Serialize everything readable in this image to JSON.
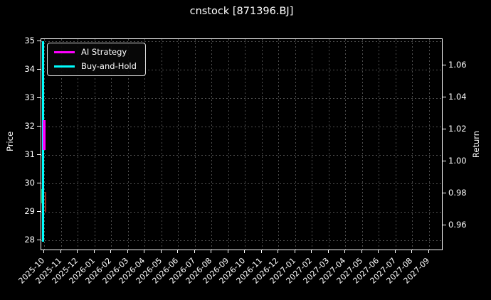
{
  "chart_data": {
    "type": "line",
    "title": "cnstock [871396.BJ]",
    "x_ticks": [
      "2025-10",
      "2025-11",
      "2025-12",
      "2026-01",
      "2026-02",
      "2026-03",
      "2026-04",
      "2026-05",
      "2026-06",
      "2026-07",
      "2026-08",
      "2026-09",
      "2026-10",
      "2026-11",
      "2026-12",
      "2027-01",
      "2027-02",
      "2027-03",
      "2027-04",
      "2027-05",
      "2027-06",
      "2027-07",
      "2027-08",
      "2027-09"
    ],
    "left_axis": {
      "label": "Price",
      "ticks": [
        28,
        29,
        30,
        31,
        32,
        33,
        34,
        35
      ]
    },
    "right_axis": {
      "label": "Return",
      "ticks": [
        "0.96",
        "0.98",
        "1.00",
        "1.02",
        "1.04",
        "1.06"
      ]
    },
    "series": [
      {
        "name": "AI Strategy",
        "color": "#ff00ff",
        "axis": "right",
        "x": "2025-10",
        "y_min": 1.007,
        "y_max": 1.026
      },
      {
        "name": "Buy-and-Hold",
        "color": "#00ffff",
        "axis": "left",
        "x": "2025-10",
        "y_min": 27.95,
        "y_max": 35.0
      }
    ],
    "partially_hidden_marks": [
      {
        "name": "up-candle",
        "color": "#00a050",
        "axis": "left",
        "y_min": 29.3,
        "y_max": 29.8
      },
      {
        "name": "down-candle",
        "color": "#8f2a1d",
        "axis": "left",
        "y_min": 29.0,
        "y_max": 29.7
      }
    ],
    "legend": {
      "position": "upper-left"
    },
    "grid": {
      "style": "dashed",
      "color": "#4f4f4f"
    },
    "background_color": "#000000",
    "text_color": "#ffffff"
  }
}
